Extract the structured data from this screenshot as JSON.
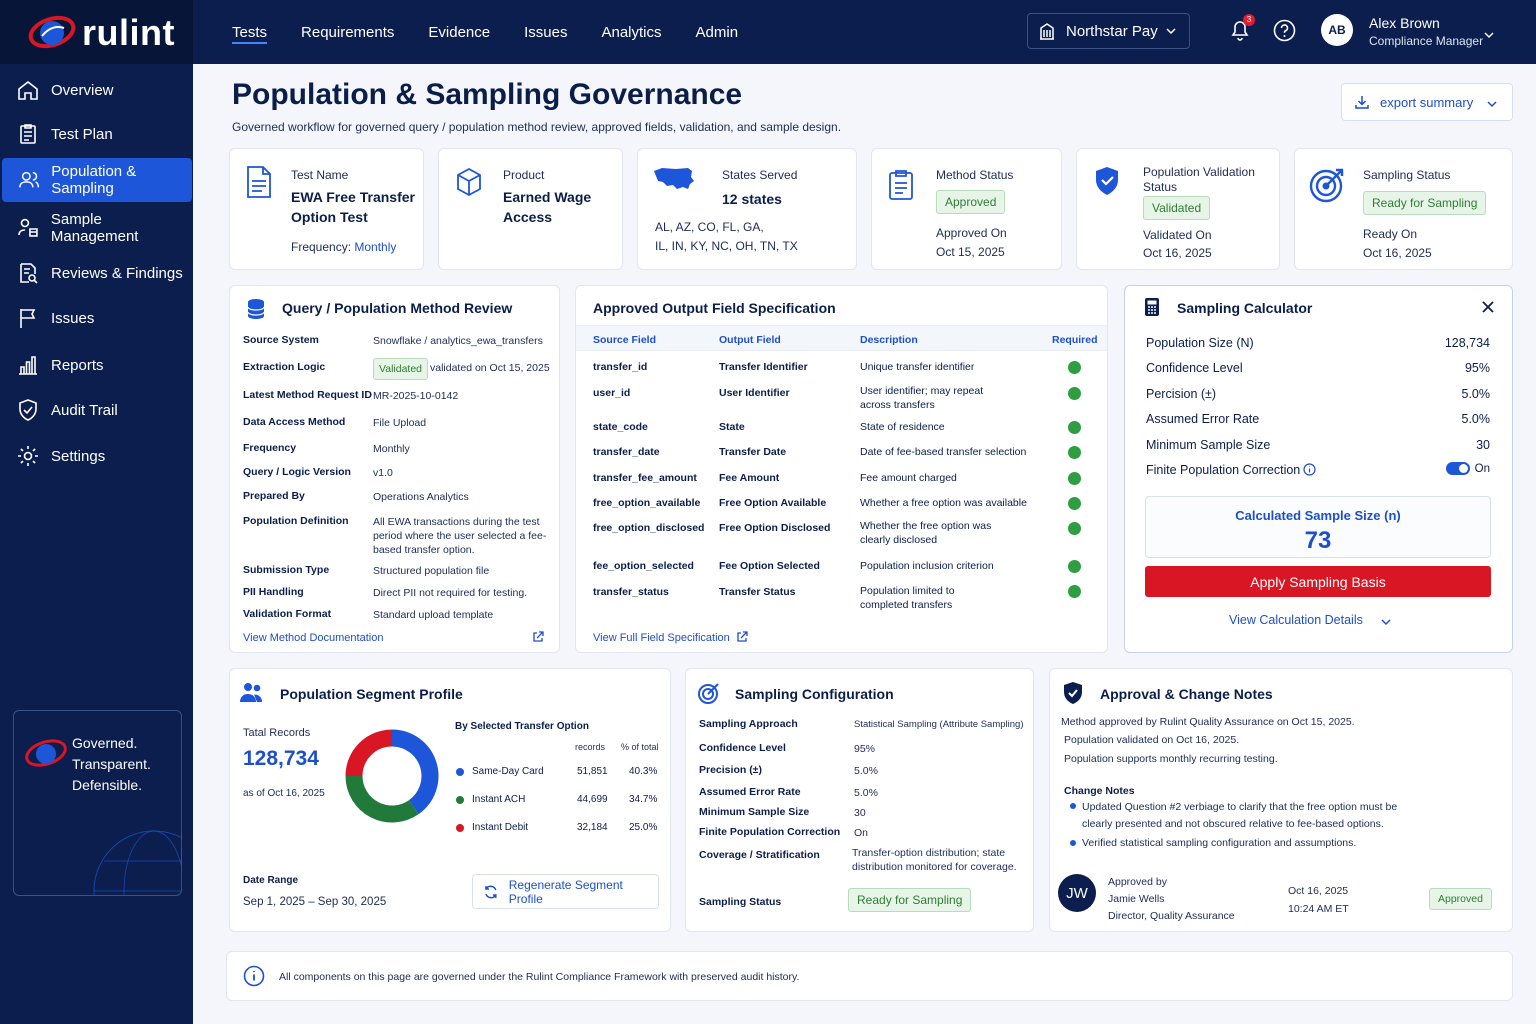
{
  "app": {
    "logo_text": "rulint"
  },
  "topnav": {
    "items": [
      {
        "label": "Tests"
      },
      {
        "label": "Requirements"
      },
      {
        "label": "Evidence"
      },
      {
        "label": "Issues"
      },
      {
        "label": "Analytics"
      },
      {
        "label": "Admin"
      }
    ],
    "active": "Tests"
  },
  "client": {
    "name": "Northstar Pay"
  },
  "notifications": {
    "count": "3"
  },
  "user": {
    "initials": "AB",
    "name": "Alex Brown",
    "role": "Compliance Manager"
  },
  "sidebar": {
    "items": [
      {
        "label": "Overview",
        "icon": "home-icon"
      },
      {
        "label": "Test Plan",
        "icon": "clipboard-icon"
      },
      {
        "label": "Population & Sampling",
        "icon": "users-icon"
      },
      {
        "label": "Sample Management",
        "icon": "database-user-icon"
      },
      {
        "label": "Reviews & Findings",
        "icon": "search-doc-icon"
      },
      {
        "label": "Issues",
        "icon": "flag-icon"
      },
      {
        "label": "Reports",
        "icon": "bar-chart-icon"
      },
      {
        "label": "Audit Trail",
        "icon": "shield-check-icon"
      },
      {
        "label": "Settings",
        "icon": "gear-icon"
      }
    ],
    "active_index": 2,
    "card_line1": "Governed.",
    "card_line2": "Transparent.",
    "card_line3": "Defensible."
  },
  "page": {
    "title": "Population & Sampling Governance",
    "subtitle": "Governed workflow for governed query / population method review, approved fields, validation, and sample design.",
    "export_label": "export summary"
  },
  "summary": {
    "test_name_label": "Test Name",
    "test_name": "EWA Free Transfer Option Test",
    "frequency_label": "Frequency:",
    "frequency": "Monthly",
    "product_label": "Product",
    "product": "Earned Wage Access",
    "states_label": "States Served",
    "states_count": "12 states",
    "states_line1": "AL, AZ, CO, FL, GA,",
    "states_line2": "IL, IN, KY, NC, OH, TN, TX",
    "method_status_label": "Method Status",
    "method_status": "Approved",
    "method_date_label": "Approved On",
    "method_date": "Oct 15, 2025",
    "pop_status_label": "Population Validation Status",
    "pop_status": "Validated",
    "pop_date_label": "Validated On",
    "pop_date": "Oct 16, 2025",
    "sampling_status_label": "Sampling Status",
    "sampling_status": "Ready for Sampling",
    "sampling_date_label": "Ready On",
    "sampling_date": "Oct 16, 2025"
  },
  "method_review": {
    "title": "Query / Population Method Review",
    "rows": [
      {
        "label": "Source System",
        "value": "Snowflake / analytics_ewa_transfers"
      },
      {
        "label": "Extraction Logic",
        "badge": "Validated",
        "value": "validated on Oct 15, 2025"
      },
      {
        "label": "Latest Method Request ID",
        "value": "MR-2025-10-0142"
      },
      {
        "label": "Data Access Method",
        "value": "File Upload"
      },
      {
        "label": "Frequency",
        "value": "Monthly"
      },
      {
        "label": "Query / Logic Version",
        "value": "v1.0"
      },
      {
        "label": "Prepared By",
        "value": "Operations Analytics"
      },
      {
        "label": "Population Definition",
        "value": "All EWA transactions during the test period where the user selected a fee-based transfer option."
      },
      {
        "label": "Submission Type",
        "value": "Structured population file"
      },
      {
        "label": "PII Handling",
        "value": "Direct PII not required for testing."
      },
      {
        "label": "Validation Format",
        "value": "Standard upload template"
      }
    ],
    "link": "View Method Documentation"
  },
  "field_spec": {
    "title": "Approved Output Field Specification",
    "headers": [
      "Source Field",
      "Output Field",
      "Description",
      "Required"
    ],
    "rows": [
      {
        "source": "transfer_id",
        "output": "Transfer Identifier",
        "desc": "Unique transfer identifier"
      },
      {
        "source": "user_id",
        "output": "User Identifier",
        "desc": "User identifier; may repeat across transfers"
      },
      {
        "source": "state_code",
        "output": "State",
        "desc": "State of residence"
      },
      {
        "source": "transfer_date",
        "output": "Transfer Date",
        "desc": "Date of fee-based transfer selection"
      },
      {
        "source": "transfer_fee_amount",
        "output": "Fee Amount",
        "desc": "Fee amount charged"
      },
      {
        "source": "free_option_available",
        "output": "Free Option Available",
        "desc": "Whether a free option was available"
      },
      {
        "source": "free_option_disclosed",
        "output": "Free Option Disclosed",
        "desc": "Whether the free option was clearly disclosed"
      },
      {
        "source": "fee_option_selected",
        "output": "Fee Option Selected",
        "desc": "Population inclusion criterion"
      },
      {
        "source": "transfer_status",
        "output": "Transfer Status",
        "desc": "Population limited to completed transfers"
      }
    ],
    "link": "View Full Field Specification"
  },
  "calculator": {
    "title": "Sampling Calculator",
    "rows": [
      {
        "label": "Population Size (N)",
        "value": "128,734"
      },
      {
        "label": "Confidence Level",
        "value": "95%"
      },
      {
        "label": "Percision (±)",
        "value": "5.0%"
      },
      {
        "label": "Assumed Error Rate",
        "value": "5.0%"
      },
      {
        "label": "Minimum Sample Size",
        "value": "30"
      }
    ],
    "fpc_label": "Finite Population Correction",
    "fpc_value": "On",
    "result_label": "Calculated Sample Size (n)",
    "result_value": "73",
    "apply_label": "Apply Sampling Basis",
    "details_label": "View Calculation Details"
  },
  "segment": {
    "title": "Population Segment Profile",
    "total_label": "Tatal Records",
    "total": "128,734",
    "asof": "as of Oct 16, 2025",
    "chart_title": "By Selected Transfer Option",
    "col_records": "records",
    "col_pct": "% of total",
    "date_range_label": "Date Range",
    "date_range": "Sep 1, 2025 – Sep 30, 2025",
    "regen_label": "Regenerate Segment Profile"
  },
  "chart_data": {
    "type": "pie",
    "title": "By Selected Transfer Option",
    "categories": [
      "Same-Day Card",
      "Instant ACH",
      "Instant Debit"
    ],
    "records": [
      "51,851",
      "44,699",
      "32,184"
    ],
    "percent_labels": [
      "40.3%",
      "34.7%",
      "25.0%"
    ],
    "values": [
      40.3,
      34.7,
      25.0
    ],
    "colors": [
      "#1d56d8",
      "#217a3a",
      "#d91623"
    ]
  },
  "sampling_config": {
    "title": "Sampling Configuration",
    "rows": [
      {
        "label": "Sampling Approach",
        "value": "Statistical Sampling (Attribute Sampling)"
      },
      {
        "label": "Confidence Level",
        "value": "95%"
      },
      {
        "label": "Precision (±)",
        "value": "5.0%"
      },
      {
        "label": "Assumed Error Rate",
        "value": "5.0%"
      },
      {
        "label": "Minimum Sample Size",
        "value": "30"
      },
      {
        "label": "Finite Population Correction",
        "value": "On"
      },
      {
        "label": "Coverage / Stratification",
        "value": "Transfer-option distribution; state distribution monitored for coverage."
      }
    ],
    "status_label": "Sampling Status",
    "status": "Ready for Sampling"
  },
  "approval": {
    "title": "Approval & Change Notes",
    "lines": [
      "Method approved by Rulint Quality Assurance on Oct 15, 2025.",
      "Population validated on Oct 16, 2025.",
      "Population supports monthly recurring testing."
    ],
    "notes_title": "Change Notes",
    "notes": [
      "Updated Question #2 verbiage to clarify that the free option must be clearly presented and not obscured relative to fee-based options.",
      "Verified statistical sampling configuration and assumptions."
    ],
    "approver_initials": "JW",
    "approved_by_label": "Approved by",
    "approver_name": "Jamie Wells",
    "approver_title": "Director, Quality Assurance",
    "date": "Oct 16, 2025",
    "time": "10:24 AM ET",
    "badge": "Approved"
  },
  "footer": {
    "text": "All components on this page are governed under the Rulint Compliance Framework with preserved audit history."
  }
}
